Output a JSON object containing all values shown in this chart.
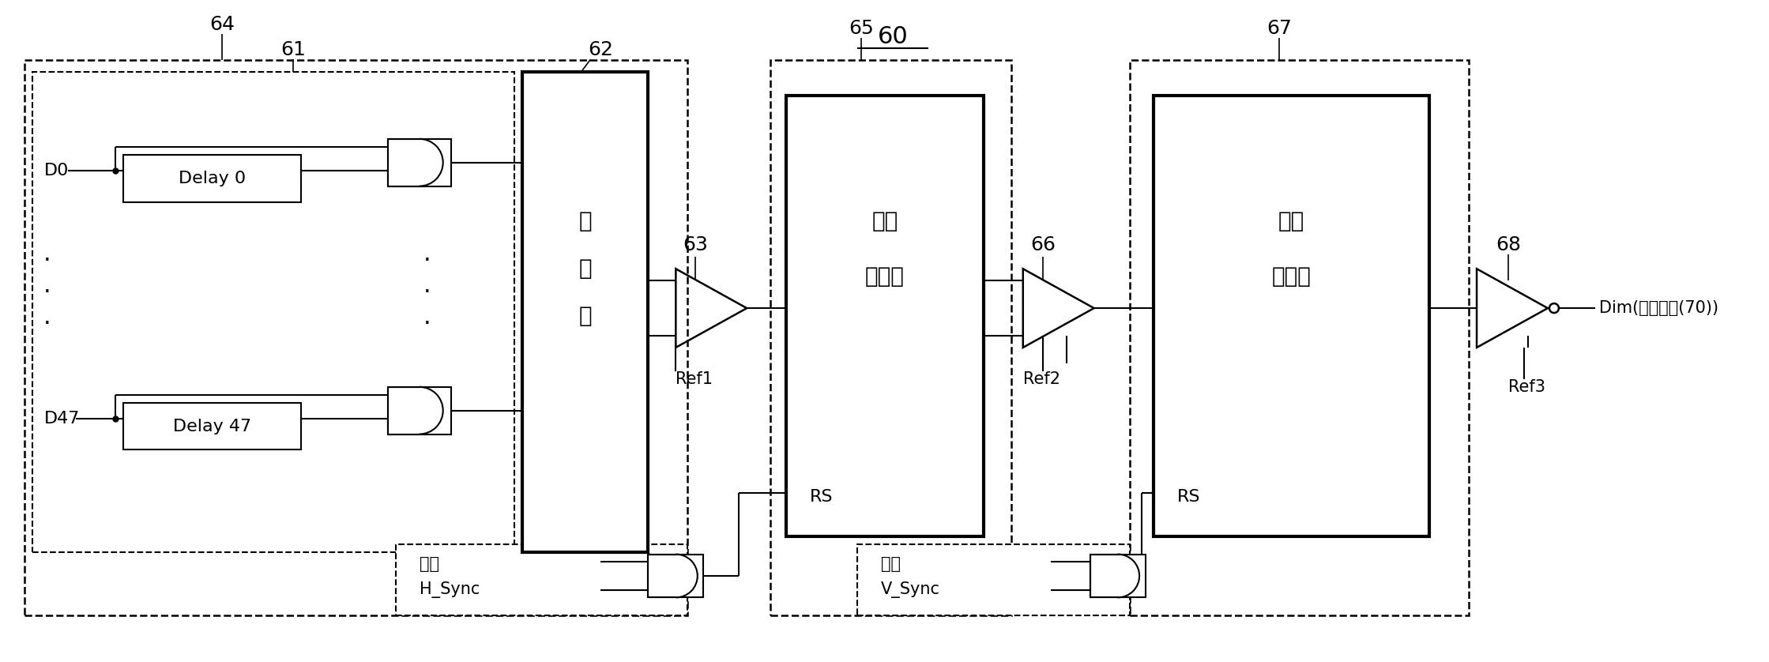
{
  "fig_width": 22.39,
  "fig_height": 8.38,
  "bg_color": "#ffffff",
  "line_color": "#000000",
  "title_60": "60",
  "label_64": "64",
  "label_61": "61",
  "label_62": "62",
  "label_63": "63",
  "label_65": "65",
  "label_66": "66",
  "label_67": "67",
  "label_68": "68",
  "text_D0": "D0",
  "text_D47": "D47",
  "text_delay0": "Delay 0",
  "text_delay47": "Delay 47",
  "text_adder": "加法器",
  "text_counter1_line1": "第一",
  "text_counter1_line2": "计数器",
  "text_counter2_line1": "第二",
  "text_counter2_line2": "计数器",
  "text_RS": "RS",
  "text_Ref1": "Ref1",
  "text_Ref2": "Ref2",
  "text_Ref3": "Ref3",
  "text_reset": "复位",
  "text_HSync": "H_Sync",
  "text_VSync": "V_Sync",
  "text_Dim": "Dim(至背光源(70))"
}
